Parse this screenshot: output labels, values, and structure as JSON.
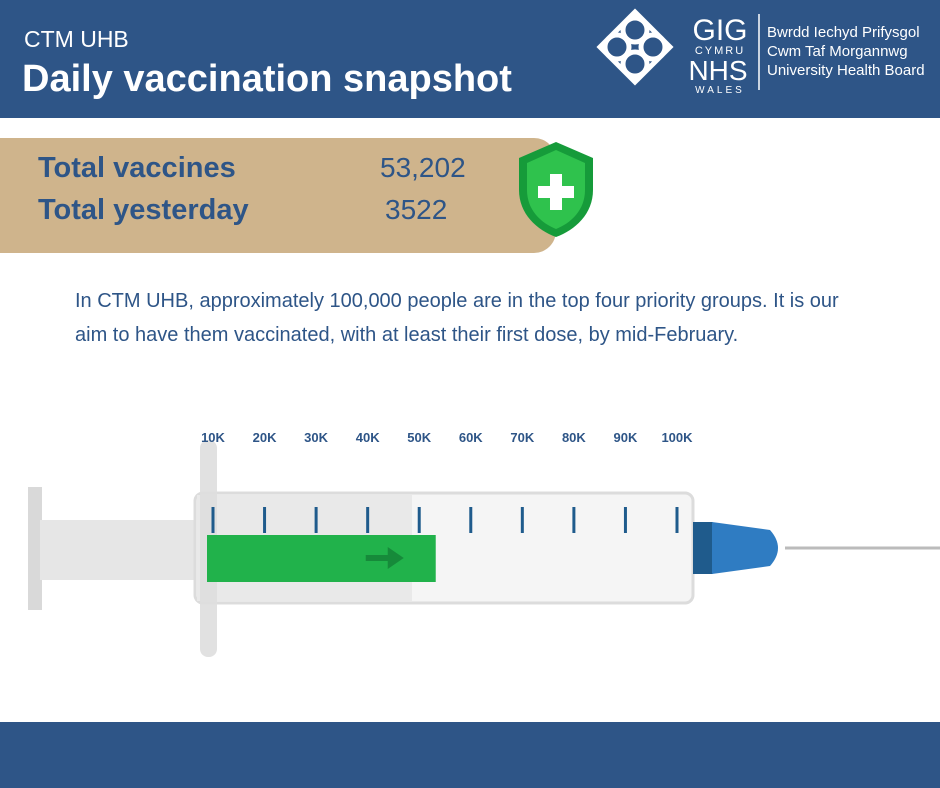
{
  "header": {
    "subtitle": "CTM UHB",
    "title": "Daily vaccination snapshot"
  },
  "logo": {
    "gig": "GIG",
    "cymru": "CYMRU",
    "nhs": "NHS",
    "wales": "WALES",
    "org_lines": [
      "Bwrdd Iechyd Prifysgol",
      "Cwm Taf Morgannwg",
      "University Health Board"
    ]
  },
  "stats": [
    {
      "label": "Total vaccines",
      "value": {
        "value": 53202,
        "label": "53,202"
      }
    },
    {
      "label": "Total yesterday",
      "value": 3522
    }
  ],
  "description": "In CTM UHB, approximately 100,000 people are in the top four priority groups.  It is our aim to have them vaccinated, with at least their first dose, by mid-February.",
  "gauge": {
    "ticks": [
      {
        "value": 10000,
        "label": "10K"
      },
      {
        "value": 20000,
        "label": "20K"
      },
      {
        "value": 30000,
        "label": "30K"
      },
      {
        "value": 40000,
        "label": "40K"
      },
      {
        "value": 50000,
        "label": "50K"
      },
      {
        "value": 60000,
        "label": "60K"
      },
      {
        "value": 70000,
        "label": "70K"
      },
      {
        "value": 80000,
        "label": "80K"
      },
      {
        "value": 90000,
        "label": "90K"
      },
      {
        "value": 100000,
        "label": "100K"
      }
    ]
  }
}
